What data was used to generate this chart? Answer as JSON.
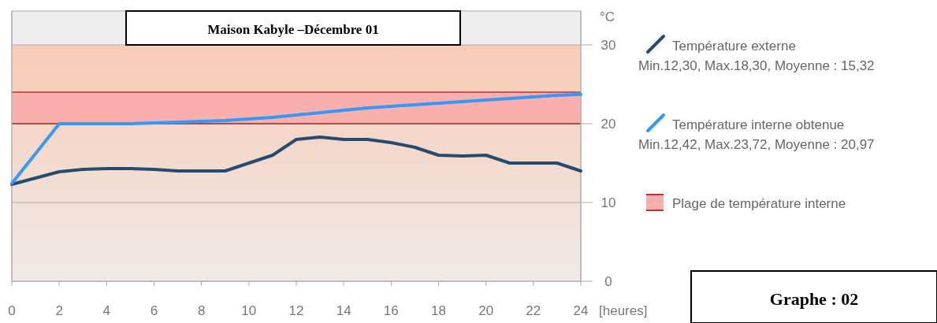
{
  "chart_data": {
    "type": "line",
    "title": "Maison Kabyle –Décembre 01",
    "xlabel": "[heures]",
    "ylabel": "°C",
    "x": [
      0,
      1,
      2,
      3,
      4,
      5,
      6,
      7,
      8,
      9,
      10,
      11,
      12,
      13,
      14,
      15,
      16,
      17,
      18,
      19,
      20,
      21,
      22,
      23,
      24
    ],
    "series": [
      {
        "name": "Température externe",
        "color": "#264b6e",
        "values": [
          12.3,
          13.1,
          13.9,
          14.2,
          14.3,
          14.3,
          14.2,
          14.0,
          14.0,
          14.0,
          15.0,
          16.0,
          18.0,
          18.3,
          18.0,
          18.0,
          17.6,
          17.0,
          16.0,
          15.9,
          16.0,
          15.0,
          15.0,
          15.0,
          14.0
        ]
      },
      {
        "name": "Température interne obtenue",
        "color": "#3399ff",
        "values": [
          12.42,
          16.2,
          20,
          20,
          20,
          20,
          20.1,
          20.2,
          20.3,
          20.4,
          20.6,
          20.8,
          21.1,
          21.4,
          21.7,
          22.0,
          22.2,
          22.4,
          22.6,
          22.8,
          23.0,
          23.2,
          23.4,
          23.6,
          23.72
        ]
      }
    ],
    "bands": [
      {
        "axis": "y",
        "from": 0,
        "to": 30,
        "color": "#f8cbb6"
      },
      {
        "axis": "y",
        "from": 20,
        "to": 24,
        "label": "Plage de température interne",
        "color": "#f9b0ad"
      }
    ],
    "ref_lines": [
      {
        "axis": "y",
        "value": 24,
        "color": "#c0302a"
      },
      {
        "axis": "y",
        "value": 20,
        "color": "#a02a2a"
      }
    ],
    "annotations": [
      "Min.12,30, Max.18,30, Moyenne : 15,32",
      "Min.12,42, Max.23,72, Moyenne : 20,97",
      "Graphe : 02"
    ],
    "xlim": [
      0,
      24
    ],
    "xticks": [
      0,
      2,
      4,
      6,
      8,
      10,
      12,
      14,
      16,
      18,
      20,
      22,
      24
    ],
    "ylim": [
      0,
      34.3
    ],
    "yticks": [
      0,
      10,
      20,
      30
    ],
    "grid": "y",
    "legend": "right",
    "marker": "none",
    "line_style": "solid"
  }
}
